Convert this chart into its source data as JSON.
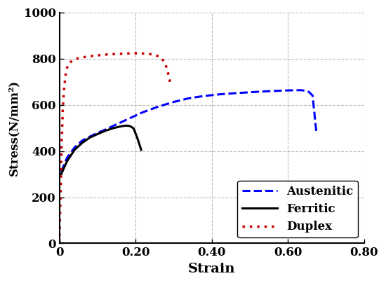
{
  "title": "",
  "xlabel": "Strain",
  "ylabel": "Stress(N/mm²)",
  "xlim": [
    0,
    0.8
  ],
  "ylim": [
    0,
    1000
  ],
  "xticks": [
    0,
    0.2,
    0.4,
    0.6,
    0.8
  ],
  "yticks": [
    0,
    200,
    400,
    600,
    800,
    1000
  ],
  "xtick_labels": [
    "0",
    "0.20",
    "0.40",
    "0.60",
    "0.80"
  ],
  "ytick_labels": [
    "0",
    "200",
    "400",
    "600",
    "800",
    "1000"
  ],
  "grid_color": "#bbbbbb",
  "background_color": "#ffffff",
  "austenitic": {
    "color": "#0000ff",
    "linestyle": "--",
    "linewidth": 2.2,
    "label": "Austenitic",
    "x": [
      0.005,
      0.02,
      0.04,
      0.06,
      0.08,
      0.1,
      0.12,
      0.15,
      0.18,
      0.22,
      0.26,
      0.3,
      0.34,
      0.38,
      0.42,
      0.46,
      0.5,
      0.54,
      0.58,
      0.6,
      0.62,
      0.635,
      0.645,
      0.655,
      0.665,
      0.675
    ],
    "y": [
      310,
      370,
      415,
      445,
      462,
      478,
      492,
      515,
      538,
      568,
      592,
      612,
      628,
      638,
      645,
      650,
      654,
      658,
      661,
      662,
      663,
      663,
      661,
      656,
      640,
      480
    ]
  },
  "ferritic": {
    "color": "#000000",
    "linestyle": "-",
    "linewidth": 2.2,
    "label": "Ferritic",
    "x": [
      0.005,
      0.02,
      0.04,
      0.06,
      0.08,
      0.1,
      0.12,
      0.14,
      0.16,
      0.175,
      0.185,
      0.195,
      0.205,
      0.215
    ],
    "y": [
      300,
      355,
      405,
      435,
      458,
      473,
      487,
      498,
      506,
      510,
      508,
      498,
      455,
      405
    ]
  },
  "duplex": {
    "color": "#cc0000",
    "linestyle": ":",
    "linewidth": 2.5,
    "label": "Duplex",
    "x": [
      0.0,
      0.003,
      0.006,
      0.009,
      0.013,
      0.018,
      0.025,
      0.04,
      0.06,
      0.09,
      0.12,
      0.15,
      0.18,
      0.2,
      0.22,
      0.245,
      0.265,
      0.278,
      0.285,
      0.292
    ],
    "y": [
      0,
      200,
      420,
      580,
      680,
      750,
      780,
      797,
      805,
      812,
      817,
      820,
      822,
      823,
      822,
      818,
      808,
      780,
      740,
      690
    ]
  },
  "legend_loc": "lower right",
  "legend_fontsize": 12,
  "font_family": "DejaVu Serif"
}
